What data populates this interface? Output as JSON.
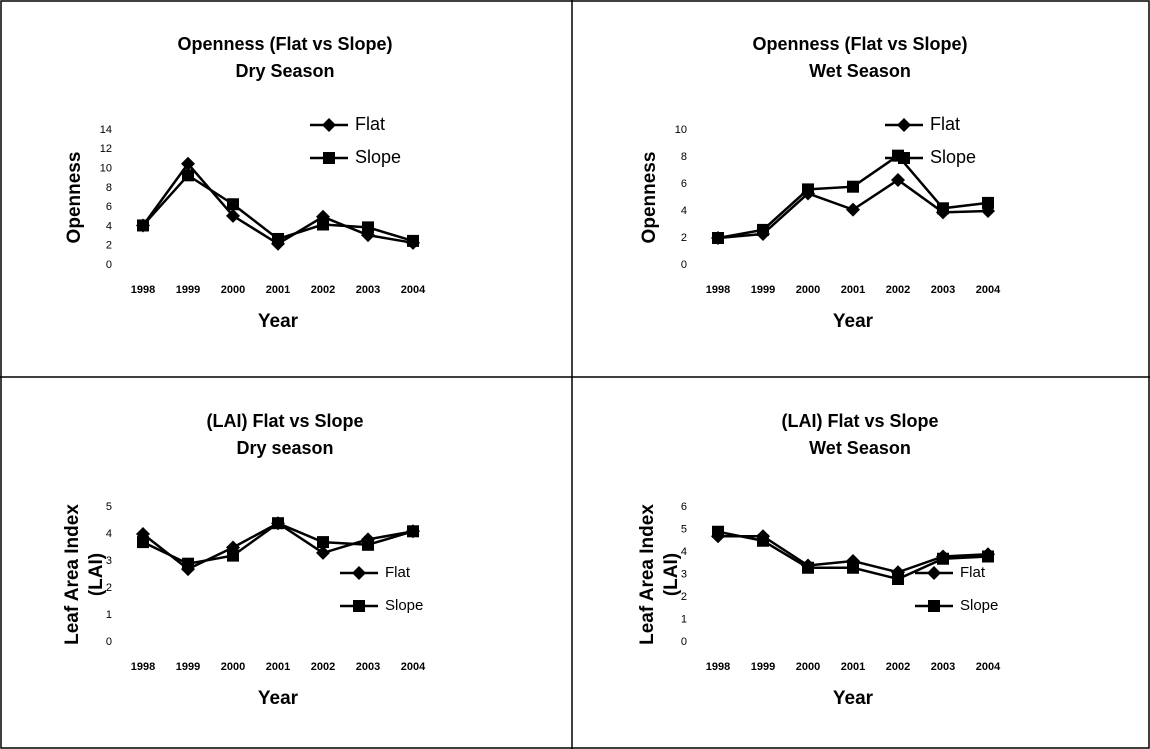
{
  "chart_data": [
    {
      "type": "line",
      "title": "Openness (Flat vs Slope)",
      "subtitle": "Dry Season",
      "ylabel": [
        "Openness"
      ],
      "xlabel": "Year",
      "categories": [
        "1998",
        "1999",
        "2000",
        "2001",
        "2002",
        "2003",
        "2004"
      ],
      "series": [
        {
          "name": "Flat",
          "color": "#000000",
          "marker": "diamond",
          "values": [
            4.1,
            10.5,
            5.1,
            2.2,
            5.0,
            3.1,
            2.3
          ]
        },
        {
          "name": "Slope",
          "color": "#000000",
          "marker": "square",
          "values": [
            4.1,
            9.3,
            6.3,
            2.7,
            4.2,
            3.9,
            2.5
          ]
        }
      ],
      "ylim": [
        0,
        14
      ],
      "yticks": [
        0,
        2,
        4,
        6,
        8,
        10,
        12,
        14
      ],
      "grid": false,
      "legend": "upper right"
    },
    {
      "type": "line",
      "title": "Openness (Flat vs Slope)",
      "subtitle": "Wet Season",
      "ylabel": [
        "Openness"
      ],
      "xlabel": "Year",
      "categories": [
        "1998",
        "1999",
        "2000",
        "2001",
        "2002",
        "2003",
        "2004"
      ],
      "series": [
        {
          "name": "Flat",
          "color": "#000000",
          "marker": "diamond",
          "values": [
            2.0,
            2.3,
            5.3,
            4.1,
            6.3,
            3.9,
            4.0
          ]
        },
        {
          "name": "Slope",
          "color": "#000000",
          "marker": "square",
          "values": [
            2.0,
            2.6,
            5.6,
            5.8,
            8.1,
            4.2,
            4.6
          ]
        }
      ],
      "ylim": [
        0,
        10
      ],
      "yticks": [
        0,
        2,
        4,
        6,
        8,
        10
      ],
      "grid": false,
      "legend": "upper right"
    },
    {
      "type": "line",
      "title": "(LAI) Flat vs Slope",
      "subtitle": "Dry season",
      "ylabel": [
        "Leaf Area Index",
        "(LAI)"
      ],
      "xlabel": "Year",
      "categories": [
        "1998",
        "1999",
        "2000",
        "2001",
        "2002",
        "2003",
        "2004"
      ],
      "series": [
        {
          "name": "Flat",
          "color": "#000000",
          "marker": "diamond",
          "values": [
            4.0,
            2.7,
            3.5,
            4.4,
            3.3,
            3.8,
            4.1
          ]
        },
        {
          "name": "Slope",
          "color": "#000000",
          "marker": "square",
          "values": [
            3.7,
            2.9,
            3.2,
            4.4,
            3.7,
            3.6,
            4.1
          ]
        }
      ],
      "ylim": [
        0,
        5
      ],
      "yticks": [
        0,
        1,
        2,
        3,
        4,
        5
      ],
      "grid": false,
      "legend": "center right"
    },
    {
      "type": "line",
      "title": "(LAI) Flat vs Slope",
      "subtitle": "Wet Season",
      "ylabel": [
        "Leaf Area Index",
        "(LAI)"
      ],
      "xlabel": "Year",
      "categories": [
        "1998",
        "1999",
        "2000",
        "2001",
        "2002",
        "2003",
        "2004"
      ],
      "series": [
        {
          "name": "Flat",
          "color": "#000000",
          "marker": "diamond",
          "values": [
            4.7,
            4.7,
            3.4,
            3.6,
            3.1,
            3.8,
            3.9
          ]
        },
        {
          "name": "Slope",
          "color": "#000000",
          "marker": "square",
          "values": [
            4.9,
            4.5,
            3.3,
            3.3,
            2.8,
            3.7,
            3.8
          ]
        }
      ],
      "ylim": [
        0,
        6
      ],
      "yticks": [
        0,
        1,
        2,
        3,
        4,
        5,
        6
      ],
      "grid": false,
      "legend": "center right"
    }
  ]
}
